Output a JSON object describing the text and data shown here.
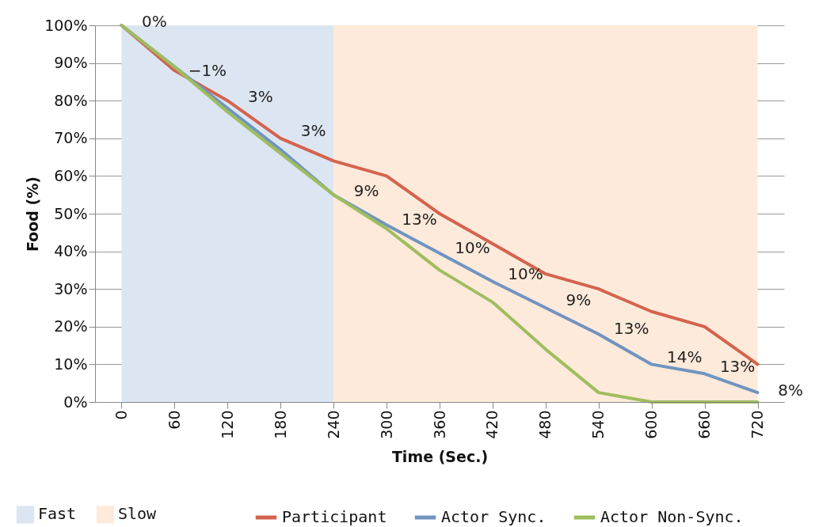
{
  "chart_data": {
    "type": "line",
    "xlabel": "Time (Sec.)",
    "ylabel": "Food (%)",
    "categories": [
      "0",
      "60",
      "120",
      "180",
      "240",
      "300",
      "360",
      "420",
      "480",
      "540",
      "600",
      "660",
      "720"
    ],
    "series": [
      {
        "name": "Participant",
        "color": "#d4634e",
        "values": [
          100,
          88,
          80,
          70,
          64,
          60,
          50,
          42,
          34,
          30,
          24,
          20,
          10
        ]
      },
      {
        "name": "Actor Sync.",
        "color": "#7094c0",
        "values": [
          100,
          89,
          78,
          67,
          55,
          47,
          39.5,
          32,
          25,
          18,
          10,
          7.5,
          2.5
        ]
      },
      {
        "name": "Actor Non-Sync.",
        "color": "#9fbd5e",
        "values": [
          100,
          89,
          77,
          66,
          55,
          46,
          35,
          26.5,
          14,
          2.5,
          0,
          0,
          0
        ]
      }
    ],
    "ylim": [
      0,
      100
    ],
    "yticks": [
      {
        "value": 0,
        "label": "0%"
      },
      {
        "value": 10,
        "label": "10%"
      },
      {
        "value": 20,
        "label": "20%"
      },
      {
        "value": 30,
        "label": "30%"
      },
      {
        "value": 40,
        "label": "40%"
      },
      {
        "value": 50,
        "label": "50%"
      },
      {
        "value": 60,
        "label": "60%"
      },
      {
        "value": 70,
        "label": "70%"
      },
      {
        "value": 80,
        "label": "80%"
      },
      {
        "value": 90,
        "label": "90%"
      },
      {
        "value": 100,
        "label": "100%"
      }
    ],
    "bands": [
      {
        "axis": "x",
        "from": "0",
        "to": "240",
        "label": "Fast",
        "color": "#dce6f2"
      },
      {
        "axis": "x",
        "from": "240",
        "to": "720",
        "label": "Slow",
        "color": "#fdeada"
      }
    ],
    "annotations": [
      {
        "text": "0%",
        "x": "0",
        "y": 100
      },
      {
        "text": "−1%",
        "x": "60",
        "y": 87
      },
      {
        "text": "3%",
        "x": "120",
        "y": 80
      },
      {
        "text": "3%",
        "x": "180",
        "y": 71
      },
      {
        "text": "9%",
        "x": "240",
        "y": 55
      },
      {
        "text": "13%",
        "x": "300",
        "y": 47.5
      },
      {
        "text": "10%",
        "x": "360",
        "y": 40
      },
      {
        "text": "10%",
        "x": "420",
        "y": 33
      },
      {
        "text": "9%",
        "x": "480",
        "y": 26
      },
      {
        "text": "13%",
        "x": "540",
        "y": 18.5
      },
      {
        "text": "14%",
        "x": "600",
        "y": 11
      },
      {
        "text": "13%",
        "x": "660",
        "y": 8.5
      },
      {
        "text": "8%",
        "x": "720",
        "y": 2
      }
    ],
    "grid": "y",
    "legend": "bottom",
    "marker": "none",
    "line_style": "solid"
  }
}
